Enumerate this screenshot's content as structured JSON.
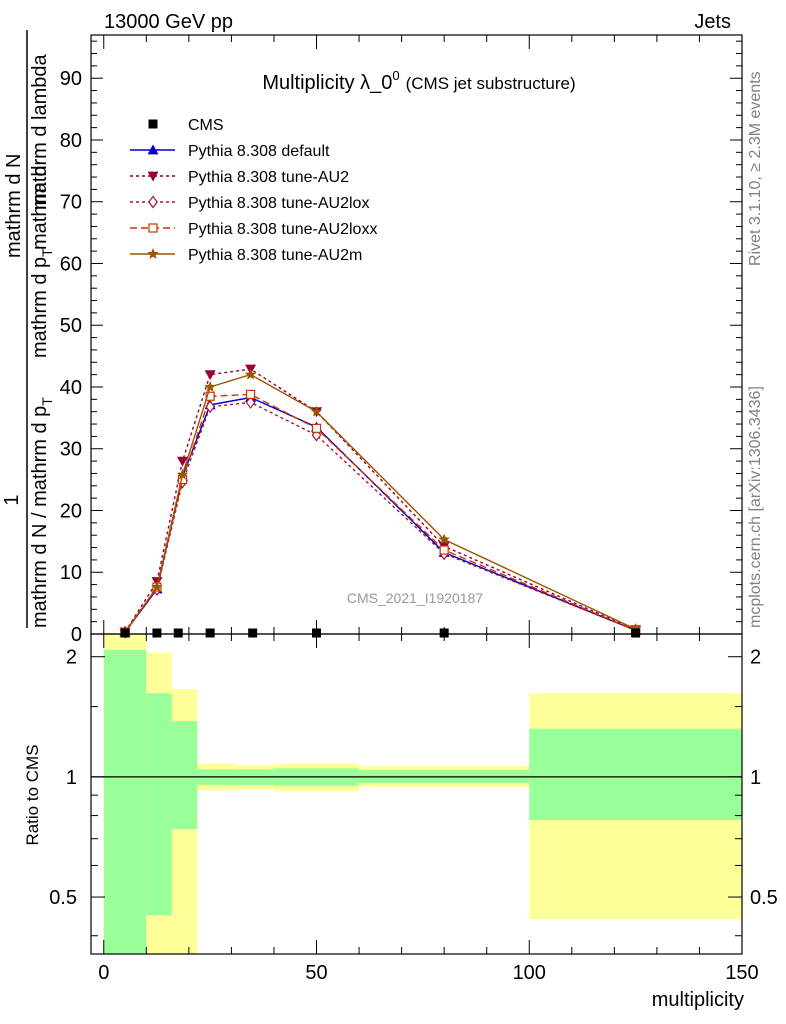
{
  "header": {
    "energy": "13000 GeV pp",
    "category": "Jets"
  },
  "side_labels": {
    "rivet": "Rivet 3.1.10, ≥ 2.3M events",
    "mcplots": "mcplots.cern.ch [arXiv:1306.3436]"
  },
  "watermark": "CMS_2021_I1920187",
  "title": {
    "main": "Multiplicity λ_0",
    "sup": "0",
    "sub": "(CMS jet substructure)"
  },
  "ylabel": {
    "one": "1",
    "denom": "mathrm d N / mathrm d p",
    "denom_sub": "T",
    "numer_right": "mathrm d",
    "numer_mid": "mathrm d p",
    "numer_mid_sub": "T",
    "numer_left": "mathrm d lambda",
    "numer_full": "mathrm d N"
  },
  "ratio_ylabel": "Ratio to CMS",
  "xlabel": "multiplicity",
  "legend": [
    {
      "label": "CMS",
      "color": "#000000",
      "marker": "square-filled",
      "dash": "none"
    },
    {
      "label": "Pythia 8.308 default",
      "color": "#0000cc",
      "marker": "triangle-up-filled",
      "dash": "solid"
    },
    {
      "label": "Pythia 8.308 tune-AU2",
      "color": "#990033",
      "marker": "triangle-down-filled",
      "dash": "dot"
    },
    {
      "label": "Pythia 8.308 tune-AU2lox",
      "color": "#aa1144",
      "marker": "diamond-open",
      "dash": "dot"
    },
    {
      "label": "Pythia 8.308 tune-AU2loxx",
      "color": "#cc3300",
      "marker": "square-open",
      "dash": "dash"
    },
    {
      "label": "Pythia 8.308 tune-AU2m",
      "color": "#995500",
      "marker": "star",
      "dash": "solid"
    }
  ],
  "chart_data": [
    {
      "type": "line",
      "panel": "main",
      "xlim": [
        -3,
        150
      ],
      "ylim": [
        0,
        97
      ],
      "xticks": [
        0,
        50,
        100,
        150
      ],
      "yticks": [
        0,
        10,
        20,
        30,
        40,
        50,
        60,
        70,
        80,
        90
      ],
      "cms": {
        "x": [
          5,
          12.5,
          17.5,
          25,
          35,
          50,
          80,
          125
        ],
        "y": [
          0,
          0,
          0,
          0,
          0,
          0,
          0,
          0
        ]
      },
      "x": [
        5,
        12.5,
        18.5,
        25,
        34.5,
        50,
        80,
        125
      ],
      "series": [
        {
          "name": "Pythia 8.308 default",
          "values": [
            0.3,
            7.3,
            25.5,
            37.1,
            38.3,
            33.5,
            13.2,
            0.6
          ]
        },
        {
          "name": "Pythia 8.308 tune-AU2",
          "values": [
            0.3,
            8.5,
            28.0,
            42.0,
            42.9,
            36.0,
            14.2,
            0.7
          ]
        },
        {
          "name": "Pythia 8.308 tune-AU2lox",
          "values": [
            0.3,
            7.2,
            24.6,
            36.8,
            37.5,
            32.2,
            13.0,
            0.6
          ]
        },
        {
          "name": "Pythia 8.308 tune-AU2loxx",
          "values": [
            0.3,
            7.6,
            25.0,
            38.5,
            38.8,
            33.3,
            13.6,
            0.6
          ]
        },
        {
          "name": "Pythia 8.308 tune-AU2m",
          "values": [
            0.3,
            7.6,
            25.8,
            40.0,
            42.0,
            36.0,
            15.3,
            0.8
          ]
        }
      ]
    },
    {
      "type": "area",
      "panel": "ratio",
      "xlim": [
        -3,
        150
      ],
      "ylim": [
        0.36,
        2.28
      ],
      "yscale": "log",
      "yticks": [
        0.5,
        1,
        2
      ],
      "bands": [
        {
          "x0": 0,
          "x1": 10,
          "yellow": [
            0.36,
            2.28
          ],
          "green": [
            0.36,
            2.08
          ]
        },
        {
          "x0": 10,
          "x1": 16,
          "yellow": [
            0.36,
            2.05
          ],
          "green": [
            0.45,
            1.62
          ]
        },
        {
          "x0": 16,
          "x1": 22,
          "yellow": [
            0.36,
            1.66
          ],
          "green": [
            0.74,
            1.38
          ]
        },
        {
          "x0": 22,
          "x1": 31,
          "yellow": [
            0.925,
            1.08
          ],
          "green": [
            0.955,
            1.045
          ]
        },
        {
          "x0": 31,
          "x1": 40,
          "yellow": [
            0.93,
            1.07
          ],
          "green": [
            0.955,
            1.045
          ]
        },
        {
          "x0": 40,
          "x1": 60,
          "yellow": [
            0.92,
            1.08
          ],
          "green": [
            0.95,
            1.05
          ]
        },
        {
          "x0": 60,
          "x1": 100,
          "yellow": [
            0.945,
            1.065
          ],
          "green": [
            0.965,
            1.04
          ]
        },
        {
          "x0": 100,
          "x1": 150,
          "yellow": [
            0.44,
            1.62
          ],
          "green": [
            0.78,
            1.32
          ]
        }
      ]
    }
  ]
}
